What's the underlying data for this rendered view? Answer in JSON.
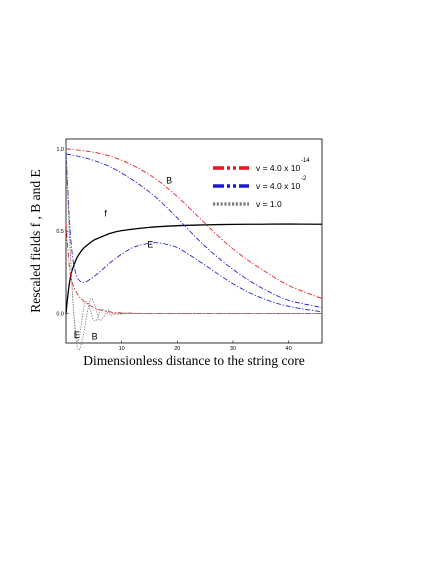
{
  "chart_data": {
    "type": "line",
    "xlabel": "Dimensionless distance to the string core",
    "ylabel": "Rescaled fields f , B and E",
    "xlim": [
      0,
      46
    ],
    "ylim": [
      -0.18,
      1.06
    ],
    "x_ticks": [
      {
        "value": 10,
        "label": "10"
      },
      {
        "value": 20,
        "label": "20"
      },
      {
        "value": 30,
        "label": "30"
      },
      {
        "value": 40,
        "label": "40"
      }
    ],
    "y_ticks": [
      {
        "value": 0.0,
        "label": "0.0"
      },
      {
        "value": 0.5,
        "label": "0.5"
      },
      {
        "value": 1.0,
        "label": "1.0"
      }
    ],
    "grid": false,
    "legend_position": "top-right",
    "legend": [
      {
        "key": "v1",
        "prefix": "v = 4.0 x 10",
        "exponent": "-14",
        "color": "#e8141c",
        "dash": "dashdot"
      },
      {
        "key": "v2",
        "prefix": "v = 4.0 x 10",
        "exponent": "-2",
        "color": "#1a1ad6",
        "dash": "dashdot"
      },
      {
        "key": "v3",
        "prefix": "v = 1.0",
        "exponent": "",
        "color": "#7a7a7a",
        "dash": "dotted"
      }
    ],
    "curve_labels": [
      {
        "text": "f",
        "x": 6.9,
        "y": 0.59
      },
      {
        "text": "B",
        "x": 18.0,
        "y": 0.79
      },
      {
        "text": "E",
        "x": 14.6,
        "y": 0.4
      },
      {
        "text": "E",
        "x": 1.4,
        "y": -0.15
      },
      {
        "text": "B",
        "x": 4.6,
        "y": -0.16
      }
    ],
    "series": [
      {
        "key": "f",
        "color": "#000000",
        "dash": "solid",
        "x": [
          0,
          0.3,
          0.6,
          1,
          1.5,
          2,
          3,
          4,
          5,
          6,
          8,
          10,
          15,
          20,
          25,
          30,
          35,
          40,
          46
        ],
        "y": [
          0,
          0.1,
          0.18,
          0.25,
          0.3,
          0.34,
          0.39,
          0.42,
          0.445,
          0.46,
          0.487,
          0.503,
          0.523,
          0.533,
          0.538,
          0.541,
          0.542,
          0.543,
          0.542
        ]
      },
      {
        "key": "B1",
        "color": "#e8141c",
        "dash": "dashdot",
        "x": [
          0,
          4,
          8,
          12,
          16,
          20,
          24,
          28,
          32,
          36,
          40,
          46
        ],
        "y": [
          1.0,
          0.985,
          0.955,
          0.9,
          0.82,
          0.71,
          0.58,
          0.45,
          0.34,
          0.25,
          0.17,
          0.09
        ]
      },
      {
        "key": "E1",
        "color": "#e8141c",
        "dash": "dashdot",
        "x": [
          0,
          0.5,
          1,
          2,
          3,
          4,
          5,
          6,
          8,
          10,
          14,
          20,
          30,
          46
        ],
        "y": [
          0.55,
          0.32,
          0.2,
          0.12,
          0.08,
          0.055,
          0.035,
          0.022,
          0.008,
          0.003,
          0.0,
          0.0,
          0.0,
          0.0
        ]
      },
      {
        "key": "B2",
        "color": "#1a1ad6",
        "dash": "dashdot",
        "x": [
          0,
          4,
          8,
          12,
          16,
          20,
          24,
          28,
          32,
          36,
          40,
          46
        ],
        "y": [
          0.97,
          0.94,
          0.89,
          0.81,
          0.71,
          0.58,
          0.44,
          0.32,
          0.22,
          0.14,
          0.08,
          0.035
        ]
      },
      {
        "key": "E2",
        "color": "#1a1ad6",
        "dash": "dashdot",
        "x": [
          0,
          0.6,
          1.2,
          2,
          3,
          4,
          6,
          8,
          10,
          12,
          14,
          16,
          18,
          20,
          22,
          26,
          30,
          34,
          38,
          42,
          46
        ],
        "y": [
          0.99,
          0.58,
          0.34,
          0.22,
          0.19,
          0.2,
          0.25,
          0.31,
          0.36,
          0.4,
          0.42,
          0.43,
          0.42,
          0.4,
          0.36,
          0.27,
          0.18,
          0.11,
          0.06,
          0.03,
          0.01
        ]
      },
      {
        "key": "B3",
        "color": "#7a7a7a",
        "dash": "dotted",
        "x": [
          0,
          0.8,
          1.5,
          2.2,
          3,
          3.8,
          4.5,
          5.3,
          6,
          6.8,
          7.5,
          8.5,
          9.5,
          11,
          13,
          46
        ],
        "y": [
          0.94,
          0.35,
          -0.05,
          -0.22,
          -0.15,
          0.0,
          0.09,
          0.04,
          -0.04,
          -0.02,
          0.02,
          0.0,
          -0.005,
          0.0,
          0.0,
          0.0
        ]
      },
      {
        "key": "E3",
        "color": "#7a7a7a",
        "dash": "dotted",
        "x": [
          0,
          0.5,
          1.2,
          2,
          2.6,
          3.3,
          4,
          4.8,
          5.5,
          6.3,
          7,
          8,
          9,
          10.5,
          13,
          46
        ],
        "y": [
          1.02,
          0.6,
          0.1,
          -0.16,
          -0.1,
          0.05,
          0.06,
          -0.03,
          -0.04,
          0.02,
          0.015,
          -0.01,
          0.0,
          0.0,
          0.0,
          0.0
        ]
      }
    ]
  }
}
